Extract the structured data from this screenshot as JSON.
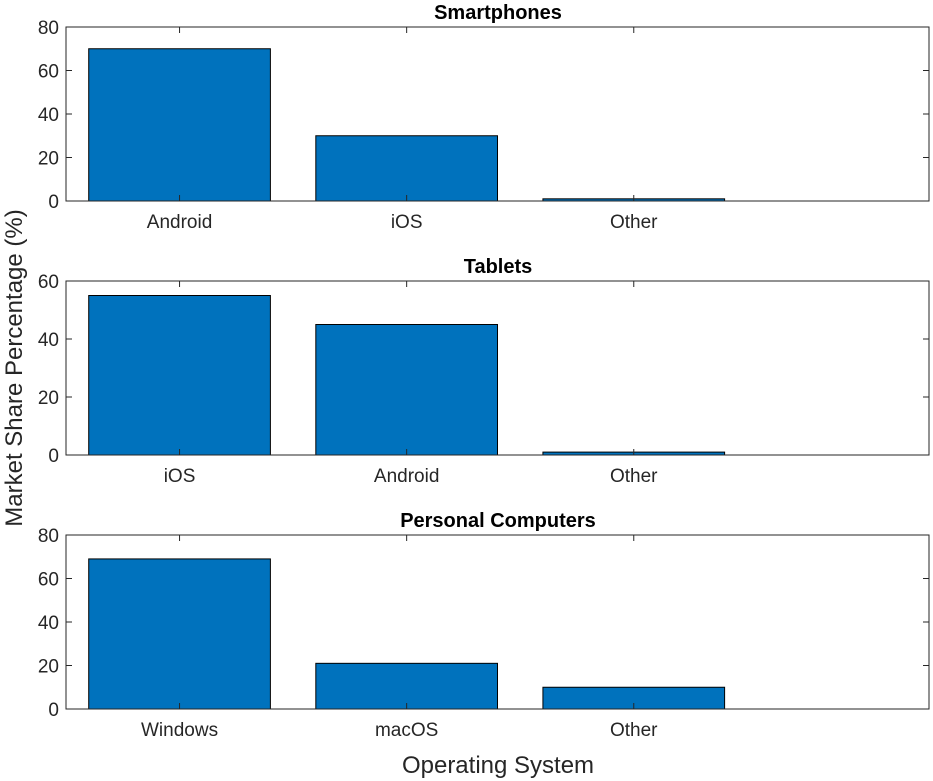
{
  "chart_data": [
    {
      "type": "bar",
      "title": "Smartphones",
      "categories": [
        "Android",
        "iOS",
        "Other"
      ],
      "values": [
        70,
        30,
        1
      ],
      "ylim": [
        0,
        80
      ],
      "yticks": [
        0,
        20,
        40,
        60,
        80
      ]
    },
    {
      "type": "bar",
      "title": "Tablets",
      "categories": [
        "iOS",
        "Android",
        "Other"
      ],
      "values": [
        55,
        45,
        1
      ],
      "ylim": [
        0,
        60
      ],
      "yticks": [
        0,
        20,
        40,
        60
      ]
    },
    {
      "type": "bar",
      "title": "Personal Computers",
      "categories": [
        "Windows",
        "macOS",
        "Other"
      ],
      "values": [
        69,
        21,
        10
      ],
      "ylim": [
        0,
        80
      ],
      "yticks": [
        0,
        20,
        40,
        60,
        80
      ]
    }
  ],
  "labels": {
    "xlabel": "Operating System",
    "ylabel": "Market Share Percentage (%)"
  },
  "colors": {
    "bar_fill": "#0072BD",
    "bar_edge": "#000000",
    "axis": "#262626"
  }
}
